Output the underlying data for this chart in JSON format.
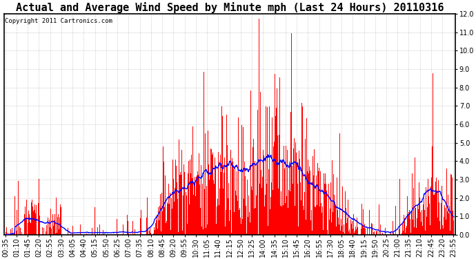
{
  "title": "Actual and Average Wind Speed by Minute mph (Last 24 Hours) 20110316",
  "copyright": "Copyright 2011 Cartronics.com",
  "ylim": [
    0.0,
    12.0
  ],
  "yticks": [
    0.0,
    1.0,
    2.0,
    3.0,
    4.0,
    5.0,
    6.0,
    7.0,
    8.0,
    9.0,
    10.0,
    11.0,
    12.0
  ],
  "bar_color": "#ff0000",
  "line_color": "#0000ff",
  "bg_color": "#ffffff",
  "grid_color": "#bbbbbb",
  "title_fontsize": 11,
  "copyright_fontsize": 6.5,
  "tick_fontsize": 7,
  "time_labels": [
    "00:35",
    "01:10",
    "01:45",
    "02:20",
    "02:55",
    "03:30",
    "04:05",
    "04:40",
    "05:15",
    "05:50",
    "06:25",
    "07:00",
    "07:35",
    "08:10",
    "08:45",
    "09:20",
    "09:55",
    "10:30",
    "11:05",
    "11:40",
    "12:15",
    "12:50",
    "13:25",
    "14:00",
    "14:35",
    "15:10",
    "15:45",
    "16:20",
    "16:55",
    "17:30",
    "18:05",
    "18:40",
    "19:15",
    "19:50",
    "20:25",
    "21:00",
    "21:35",
    "22:10",
    "22:45",
    "23:20",
    "23:55"
  ],
  "seed": 7
}
